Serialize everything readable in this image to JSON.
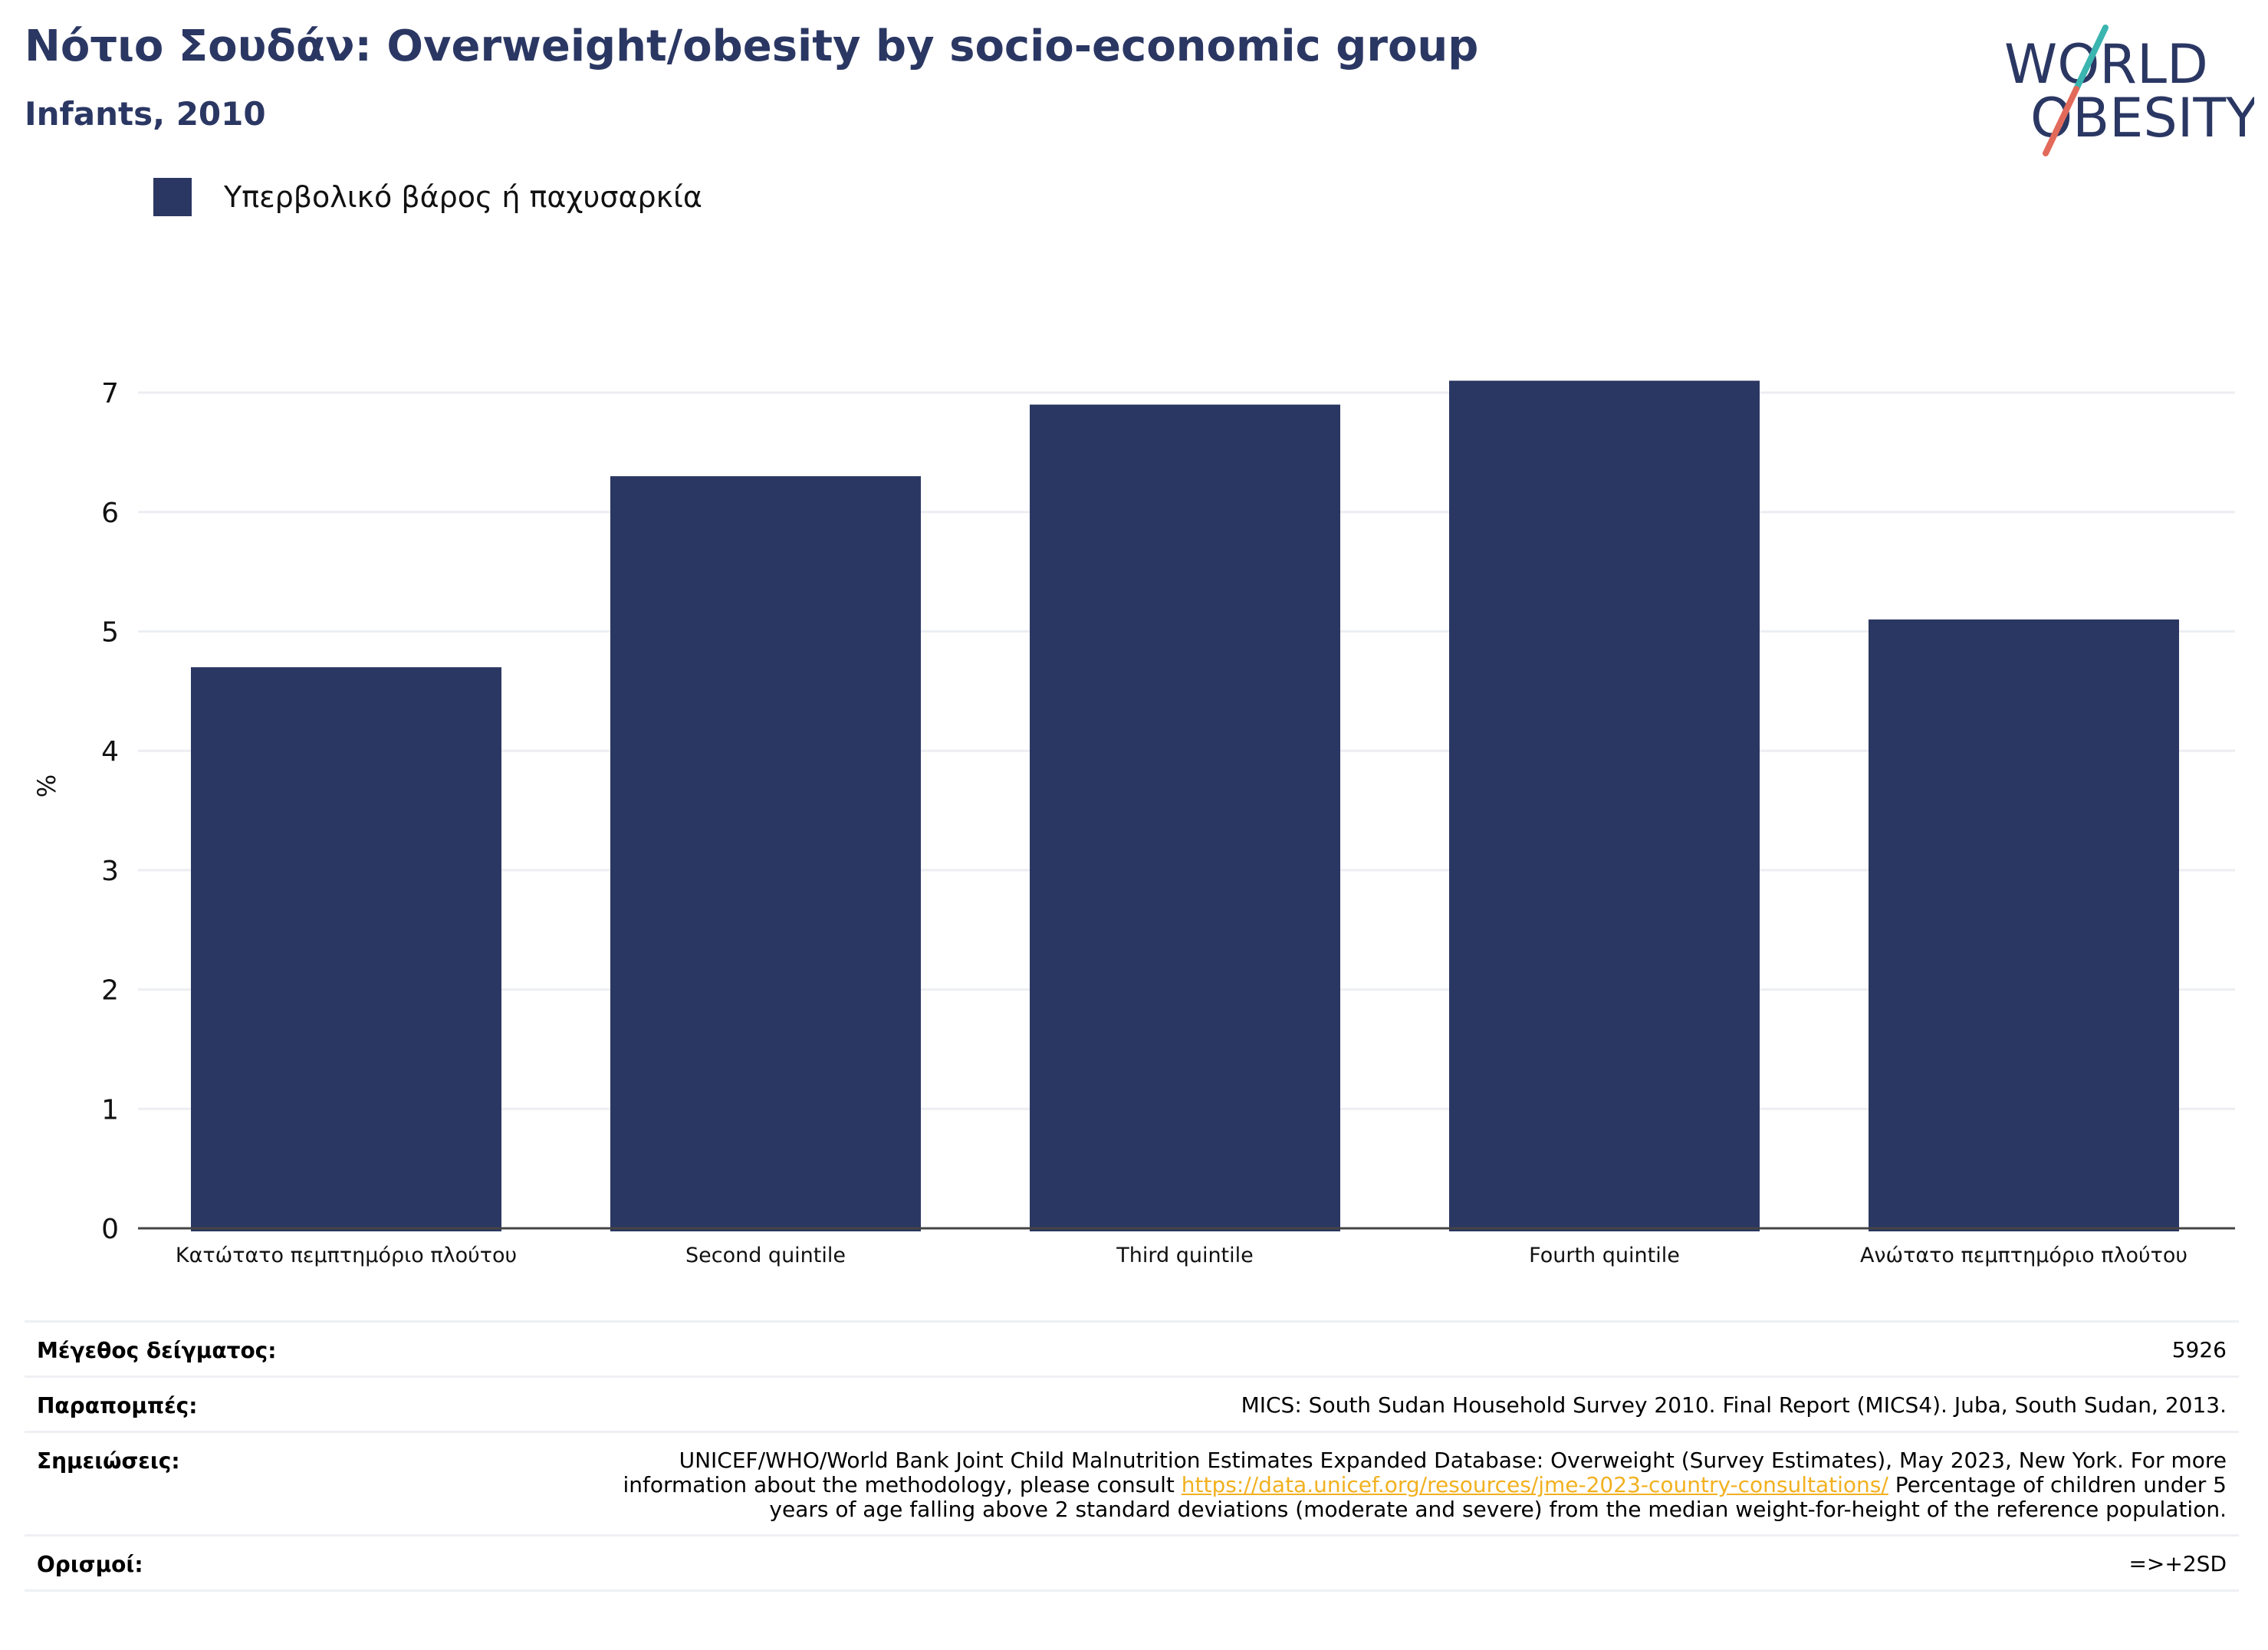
{
  "header": {
    "title": "Νότιο Σουδάν: Overweight/obesity by socio-economic group",
    "subtitle": "Infants, 2010"
  },
  "logo": {
    "line1": "WORLD",
    "line2": "OBESITY",
    "text_color": "#2b3763",
    "slash_top_color": "#3ab5b0",
    "slash_bottom_color": "#e26a5a"
  },
  "legend": {
    "label": "Υπερβολικό βάρος ή παχυσαρκία",
    "color": "#2b3763"
  },
  "chart_data": {
    "type": "bar",
    "categories": [
      "Κατώτατο πεμπτημόριο πλούτου",
      "Second quintile",
      "Third quintile",
      "Fourth quintile",
      "Ανώτατο πεμπτημόριο πλούτου"
    ],
    "series": [
      {
        "name": "Υπερβολικό βάρος ή παχυσαρκία",
        "values": [
          4.7,
          6.3,
          6.9,
          7.1,
          5.1
        ],
        "color": "#2b3763"
      }
    ],
    "ylabel": "%",
    "ylim": [
      0,
      7.5
    ],
    "yticks": [
      0,
      1,
      2,
      3,
      4,
      5,
      6,
      7
    ],
    "grid": true,
    "legend_position": "top-left"
  },
  "meta": {
    "sample_size": {
      "label": "Μέγεθος δείγματος:",
      "value": "5926"
    },
    "references": {
      "label": "Παραπομπές:",
      "value": "MICS: South Sudan Household Survey 2010. Final Report (MICS4). Juba, South Sudan, 2013."
    },
    "notes": {
      "label": "Σημειώσεις:",
      "before": "UNICEF/WHO/World Bank Joint Child Malnutrition Estimates Expanded Database: Overweight (Survey Estimates), May 2023, New York. For more information about the methodology, please consult",
      "link": "https://data.unicef.org/resources/jme-2023-country-consultations/",
      "after": "Percentage of children under 5 years of age falling above 2 standard deviations (moderate and severe) from the median weight-for-height of the reference population."
    },
    "definitions": {
      "label": "Ορισμοί:",
      "value": "=>+2SD"
    }
  }
}
